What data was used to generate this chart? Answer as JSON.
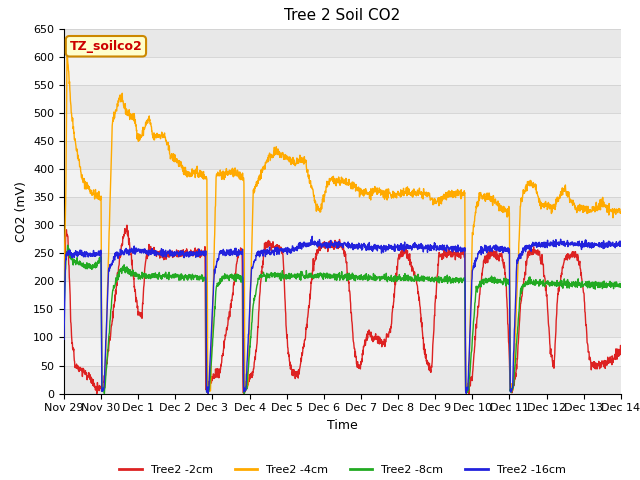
{
  "title": "Tree 2 Soil CO2",
  "xlabel": "Time",
  "ylabel": "CO2 (mV)",
  "legend_label": "TZ_soilco2",
  "ylim": [
    0,
    650
  ],
  "yticks": [
    0,
    50,
    100,
    150,
    200,
    250,
    300,
    350,
    400,
    450,
    500,
    550,
    600,
    650
  ],
  "line_colors": [
    "#dd2222",
    "#ffaa00",
    "#22aa22",
    "#2222dd"
  ],
  "line_labels": [
    "Tree2 -2cm",
    "Tree2 -4cm",
    "Tree2 -8cm",
    "Tree2 -16cm"
  ],
  "background_color": "#ffffff",
  "legend_box_color": "#ffffcc",
  "legend_box_edge": "#cc8800",
  "legend_label_color": "#cc0000",
  "title_fontsize": 11,
  "axis_fontsize": 9,
  "tick_fontsize": 8,
  "legend_fontsize": 8,
  "linewidth": 1.0,
  "xlabels": [
    "Nov 29",
    "Nov 30",
    "Dec 1",
    "Dec 2",
    "Dec 3",
    "Dec 4",
    "Dec 5",
    "Dec 6",
    "Dec 7",
    "Dec 8",
    "Dec 9",
    "Dec 10",
    "Dec 11",
    "Dec 12",
    "Dec 13",
    "Dec 14"
  ],
  "band_colors": [
    "#e8e8e8",
    "#f2f2f2"
  ]
}
